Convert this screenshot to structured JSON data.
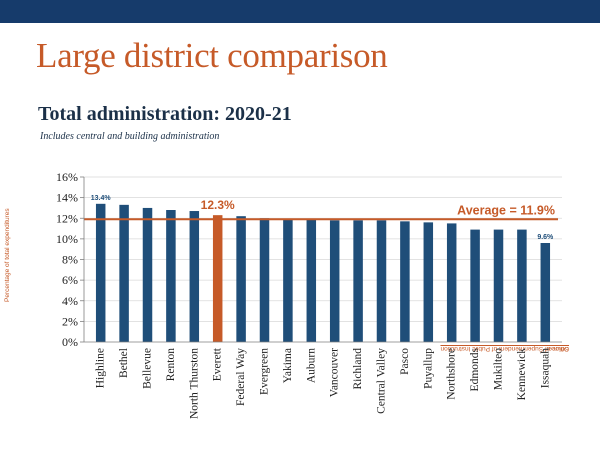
{
  "slide": {
    "title": "Large district comparison"
  },
  "chart_data": {
    "type": "bar",
    "title": "Total administration:  2020-21",
    "subtitle": "Includes central and building  administration",
    "ylabel": "Percentage of total expenditures",
    "xlabel": "",
    "ylim": [
      0,
      16
    ],
    "yticks": [
      "0%",
      "2%",
      "4%",
      "6%",
      "8%",
      "10%",
      "12%",
      "14%",
      "16%"
    ],
    "yticks_values": [
      0,
      2,
      4,
      6,
      8,
      10,
      12,
      14,
      16
    ],
    "grid": true,
    "categories": [
      "Highline",
      "Bethel",
      "Bellevue",
      "Renton",
      "North Thurston",
      "Everett",
      "Federal Way",
      "Evergreen",
      "Yakima",
      "Auburn",
      "Vancouver",
      "Richland",
      "Central Valley",
      "Pasco",
      "Puyallup",
      "Northshore",
      "Edmonds",
      "Mukilteo",
      "Kennewick",
      "Issaquah"
    ],
    "values": [
      13.4,
      13.3,
      13.0,
      12.8,
      12.7,
      12.3,
      12.2,
      12.0,
      11.9,
      11.9,
      11.8,
      11.8,
      11.8,
      11.7,
      11.6,
      11.5,
      10.9,
      10.9,
      10.9,
      9.6
    ],
    "highlight_index": 5,
    "data_labels": [
      {
        "index": 0,
        "text": "13.4%"
      },
      {
        "index": 5,
        "text": "12.3%"
      },
      {
        "index": 19,
        "text": "9.6%"
      }
    ],
    "average": {
      "value": 11.9,
      "label": "Average = 11.9%"
    },
    "source_prefix": "Source:",
    "source_org": "Office of Superintendent of Public Instruction",
    "colors": {
      "bar": "#1f4e79",
      "highlight": "#c65a28",
      "average_line": "#c65a28",
      "label_blue": "#1f4e79",
      "grid": "#d9d9d9",
      "axis": "#7f7f7f",
      "text": "#1b3048"
    }
  }
}
